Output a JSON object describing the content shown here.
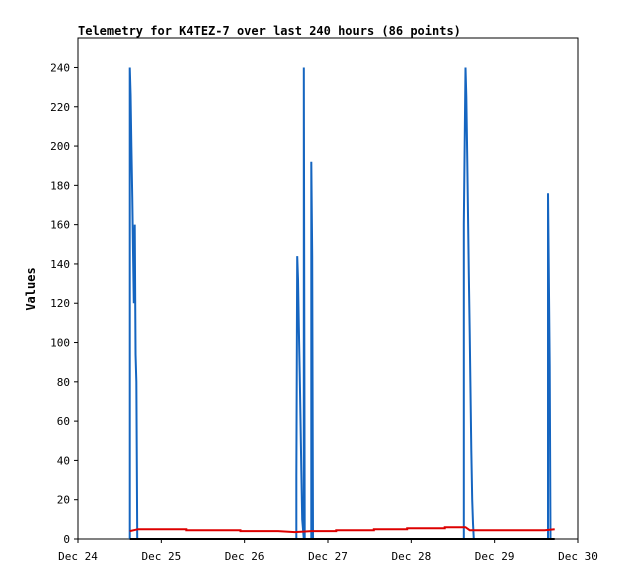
{
  "chart_data": {
    "type": "line",
    "title": "Telemetry for K4TEZ-7 over last 240 hours (86 points)",
    "xlabel": "",
    "ylabel": "Values",
    "x_ticks": [
      "Dec 24",
      "Dec 25",
      "Dec 26",
      "Dec 27",
      "Dec 28",
      "Dec 29",
      "Dec 30"
    ],
    "x_range_days": [
      0,
      6
    ],
    "y_ticks": [
      0,
      20,
      40,
      60,
      80,
      100,
      120,
      140,
      160,
      180,
      200,
      220,
      240
    ],
    "ylim": [
      0,
      255
    ],
    "grid": false,
    "legend": "none",
    "colors": {
      "blue": "#1565c0",
      "red": "#dd0000",
      "black": "#000000"
    },
    "series": [
      {
        "color": "blue",
        "points": [
          [
            0.62,
            0
          ],
          [
            0.62,
            240
          ],
          [
            0.63,
            226
          ],
          [
            0.64,
            200
          ],
          [
            0.65,
            174
          ],
          [
            0.66,
            146
          ],
          [
            0.67,
            120
          ],
          [
            0.68,
            160
          ],
          [
            0.69,
            94
          ],
          [
            0.7,
            80
          ],
          [
            0.71,
            0
          ],
          [
            2.62,
            0
          ],
          [
            2.62,
            32
          ],
          [
            2.63,
            144
          ],
          [
            2.64,
            132
          ],
          [
            2.65,
            108
          ],
          [
            2.66,
            84
          ],
          [
            2.67,
            60
          ],
          [
            2.68,
            35
          ],
          [
            2.69,
            10
          ],
          [
            2.71,
            0
          ],
          [
            2.71,
            240
          ],
          [
            2.72,
            0
          ],
          [
            2.8,
            0
          ],
          [
            2.8,
            192
          ],
          [
            2.81,
            144
          ],
          [
            2.82,
            0
          ],
          [
            4.63,
            0
          ],
          [
            4.63,
            160
          ],
          [
            4.65,
            240
          ],
          [
            4.66,
            225
          ],
          [
            4.67,
            195
          ],
          [
            4.68,
            165
          ],
          [
            4.69,
            135
          ],
          [
            4.7,
            105
          ],
          [
            4.71,
            75
          ],
          [
            4.72,
            45
          ],
          [
            4.73,
            20
          ],
          [
            4.74,
            8
          ],
          [
            4.75,
            0
          ],
          [
            5.64,
            0
          ],
          [
            5.64,
            176
          ],
          [
            5.66,
            88
          ],
          [
            5.67,
            0
          ]
        ]
      },
      {
        "color": "red",
        "points": [
          [
            0.62,
            4
          ],
          [
            0.72,
            5
          ],
          [
            1.3,
            5
          ],
          [
            1.3,
            4.5
          ],
          [
            1.95,
            4.5
          ],
          [
            1.95,
            4
          ],
          [
            2.4,
            4
          ],
          [
            2.6,
            3.5
          ],
          [
            2.8,
            4
          ],
          [
            3.1,
            4
          ],
          [
            3.1,
            4.5
          ],
          [
            3.55,
            4.5
          ],
          [
            3.55,
            5
          ],
          [
            3.95,
            5
          ],
          [
            3.95,
            5.5
          ],
          [
            4.4,
            5.5
          ],
          [
            4.4,
            6
          ],
          [
            4.65,
            6
          ],
          [
            4.7,
            4.5
          ],
          [
            5.6,
            4.5
          ],
          [
            5.72,
            5
          ]
        ]
      },
      {
        "color": "black",
        "points": [
          [
            0.62,
            0
          ],
          [
            5.72,
            0
          ]
        ]
      }
    ]
  }
}
